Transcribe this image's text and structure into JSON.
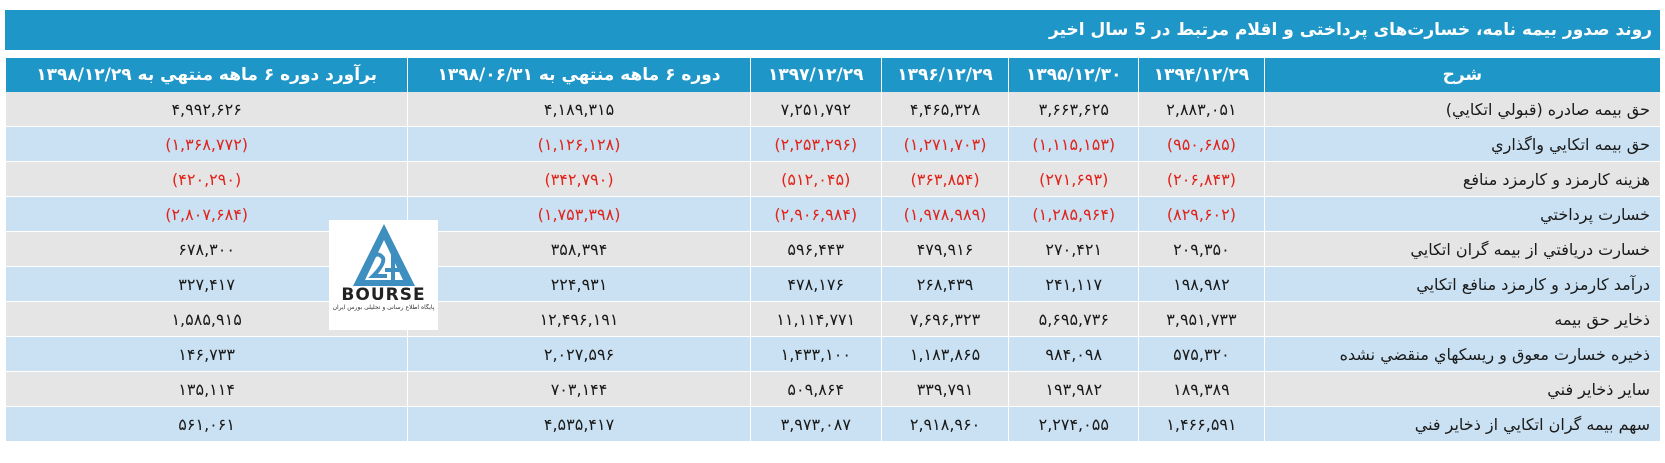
{
  "title": "روند صدور بيمه نامه، خسارت‌های پرداختی و اقلام مرتبط در 5 سال اخير",
  "headers": [
    "شرح",
    "۱۳۹۴/۱۲/۲۹",
    "۱۳۹۵/۱۲/۳۰",
    "۱۳۹۶/۱۲/۲۹",
    "۱۳۹۷/۱۲/۲۹",
    "دوره ۶ ماهه منتهي به ۱۳۹۸/۰۶/۳۱",
    "برآورد دوره ۶ ماهه منتهي به ۱۳۹۸/۱۲/۲۹"
  ],
  "rows": [
    {
      "label": "حق بيمه صادره (قبولي اتكايي)",
      "values": [
        "۲,۸۸۳,۰۵۱",
        "۳,۶۶۳,۶۲۵",
        "۴,۴۶۵,۳۲۸",
        "۷,۲۵۱,۷۹۲",
        "۴,۱۸۹,۳۱۵",
        "۴,۹۹۲,۶۲۶"
      ],
      "negative": false
    },
    {
      "label": "حق بيمه اتكايي واگذاري",
      "values": [
        "(۹۵۰,۶۸۵)",
        "(۱,۱۱۵,۱۵۳)",
        "(۱,۲۷۱,۷۰۳)",
        "(۲,۲۵۳,۲۹۶)",
        "(۱,۱۲۶,۱۲۸)",
        "(۱,۳۶۸,۷۷۲)"
      ],
      "negative": true
    },
    {
      "label": "هزينه کارمزد و کارمزد منافع",
      "values": [
        "(۲۰۶,۸۴۳)",
        "(۲۷۱,۶۹۳)",
        "(۳۶۳,۸۵۴)",
        "(۵۱۲,۰۴۵)",
        "(۳۴۲,۷۹۰)",
        "(۴۲۰,۲۹۰)"
      ],
      "negative": true
    },
    {
      "label": "خسارت پرداختي",
      "values": [
        "(۸۲۹,۶۰۲)",
        "(۱,۲۸۵,۹۶۴)",
        "(۱,۹۷۸,۹۸۹)",
        "(۲,۹۰۶,۹۸۴)",
        "(۱,۷۵۳,۳۹۸)",
        "(۲,۸۰۷,۶۸۴)"
      ],
      "negative": true
    },
    {
      "label": "خسارت دريافتي از بيمه گران اتكايي",
      "values": [
        "۲۰۹,۳۵۰",
        "۲۷۰,۴۲۱",
        "۴۷۹,۹۱۶",
        "۵۹۶,۴۴۳",
        "۳۵۸,۳۹۴",
        "۶۷۸,۳۰۰"
      ],
      "negative": false
    },
    {
      "label": "درآمد کارمزد و کارمزد منافع اتکايي",
      "values": [
        "۱۹۸,۹۸۲",
        "۲۴۱,۱۱۷",
        "۲۶۸,۴۳۹",
        "۴۷۸,۱۷۶",
        "۲۲۴,۹۳۱",
        "۳۲۷,۴۱۷"
      ],
      "negative": false
    },
    {
      "label": "ذخاير حق بيمه",
      "values": [
        "۳,۹۵۱,۷۳۳",
        "۵,۶۹۵,۷۳۶",
        "۷,۶۹۶,۳۲۳",
        "۱۱,۱۱۴,۷۷۱",
        "۱۲,۴۹۶,۱۹۱",
        "۱,۵۸۵,۹۱۵"
      ],
      "negative": false
    },
    {
      "label": "ذخيره خسارت معوق و ريسکهاي منقضي نشده",
      "values": [
        "۵۷۵,۳۲۰",
        "۹۸۴,۰۹۸",
        "۱,۱۸۳,۸۶۵",
        "۱,۴۳۳,۱۰۰",
        "۲,۰۲۷,۵۹۶",
        "۱۴۶,۷۳۳"
      ],
      "negative": false
    },
    {
      "label": "ساير ذخاير فني",
      "values": [
        "۱۸۹,۳۸۹",
        "۱۹۳,۹۸۲",
        "۳۳۹,۷۹۱",
        "۵۰۹,۸۶۴",
        "۷۰۳,۱۴۴",
        "۱۳۵,۱۱۴"
      ],
      "negative": false
    },
    {
      "label": "سهم بيمه گران اتكايي از ذخاير فني",
      "values": [
        "۱,۴۶۶,۵۹۱",
        "۲,۲۷۴,۰۵۵",
        "۲,۹۱۸,۹۶۰",
        "۳,۹۷۳,۰۸۷",
        "۴,۵۳۵,۴۱۷",
        "۵۶۱,۰۶۱"
      ],
      "negative": false
    }
  ],
  "logo": {
    "text": "BOURSE",
    "numerals": "24",
    "subtitle": "پایگاه اطلاع رسانی و تحلیلی بورس ایران"
  },
  "colors": {
    "header_bg": "#1e96c8",
    "row_gray": "#e5e5e5",
    "row_blue": "#c9e1f2",
    "negative_red": "#e2231a"
  }
}
